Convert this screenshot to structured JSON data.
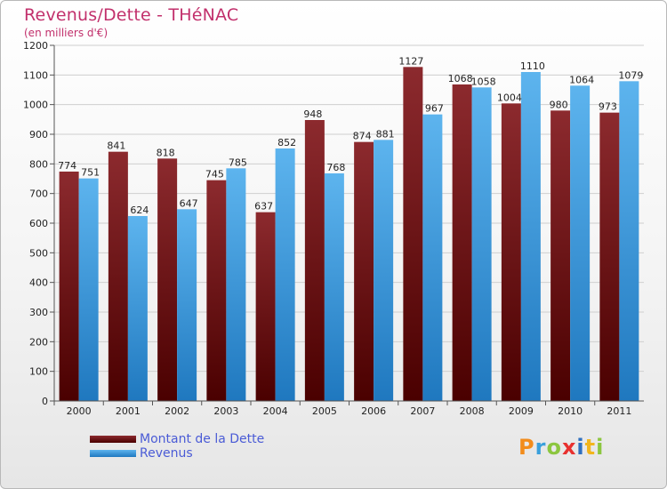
{
  "title": "Revenus/Dette - THéNAC",
  "subtitle": "(en milliers d'€)",
  "colors": {
    "dette": "#7a1f22",
    "revenus": "#3f9fe0",
    "title": "#c2306c",
    "legend_text": "#4a5bd6"
  },
  "legend": {
    "dette_label": "Montant de la Dette",
    "revenus_label": "Revenus"
  },
  "brand": {
    "letters": [
      "P",
      "r",
      "o",
      "x",
      "i",
      "t",
      "i"
    ],
    "colors": [
      "#f28c1c",
      "#3aa0dc",
      "#8cc63f",
      "#e8312f",
      "#2f6fbf",
      "#f2b51c",
      "#8cc63f"
    ]
  },
  "chart_data": {
    "type": "bar",
    "title": "Revenus/Dette - THéNAC",
    "ylabel": "(en milliers d'€)",
    "xlabel": "",
    "ylim": [
      0,
      1200
    ],
    "yticks": [
      0,
      100,
      200,
      300,
      400,
      500,
      600,
      700,
      800,
      900,
      1000,
      1100,
      1200
    ],
    "grid": true,
    "categories": [
      "2000",
      "2001",
      "2002",
      "2003",
      "2004",
      "2005",
      "2006",
      "2007",
      "2008",
      "2009",
      "2010",
      "2011"
    ],
    "series": [
      {
        "name": "Montant de la Dette",
        "values": [
          774,
          841,
          818,
          745,
          637,
          948,
          874,
          1127,
          1068,
          1004,
          980,
          973
        ]
      },
      {
        "name": "Revenus",
        "values": [
          751,
          624,
          647,
          785,
          852,
          768,
          881,
          967,
          1058,
          1110,
          1064,
          1079
        ]
      }
    ]
  }
}
